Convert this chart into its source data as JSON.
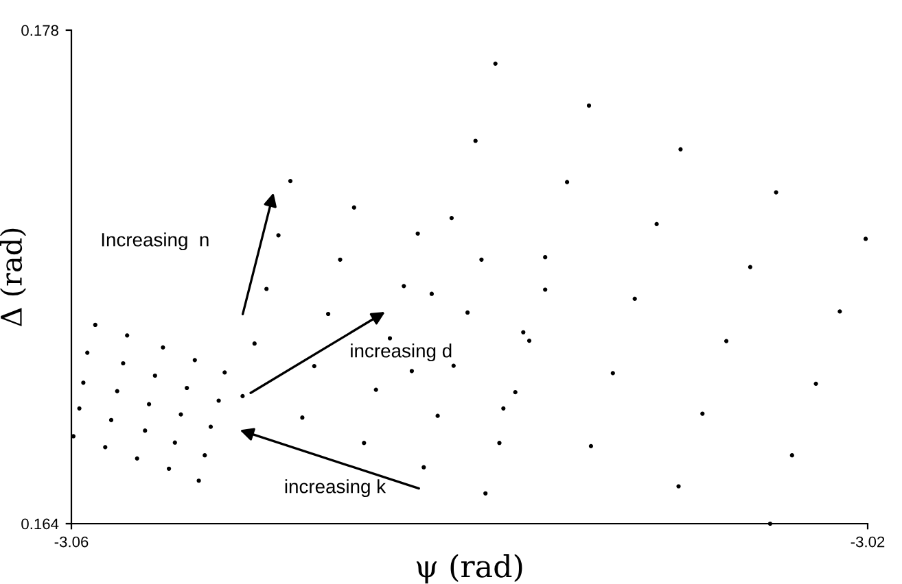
{
  "chart_data": {
    "type": "scatter",
    "xlabel": "ψ (rad)",
    "ylabel": "Δ (rad)",
    "xlim": [
      -3.06,
      -3.02
    ],
    "ylim": [
      0.164,
      0.178
    ],
    "xticks": [
      -3.06,
      -3.02
    ],
    "yticks": [
      0.164,
      0.178
    ],
    "grid": false,
    "legend": false,
    "marker": "circle",
    "annotations": [
      "Increasing  n",
      "increasing d",
      "increasing k"
    ],
    "series": [
      {
        "color": "#000000",
        "x": [
          -3.0588,
          -3.0572,
          -3.0592,
          -3.0554,
          -3.0574,
          -3.0538,
          -3.0594,
          -3.0558,
          -3.0523,
          -3.0577,
          -3.0542,
          -3.0596,
          -3.0561,
          -3.0526,
          -3.0514,
          -3.058,
          -3.0545,
          -3.0599,
          -3.0563,
          -3.053,
          -3.0583,
          -3.0548,
          -3.0567,
          -3.0533,
          -3.0551,
          -3.0536,
          -3.0502,
          -3.0508,
          -3.0478,
          -3.0484,
          -3.0387,
          -3.0397,
          -3.049,
          -3.0458,
          -3.0496,
          -3.0409,
          -3.0426,
          -3.0465,
          -3.0394,
          -3.0362,
          -3.0433,
          -3.0419,
          -3.0362,
          -3.0471,
          -3.0401,
          -3.044,
          -3.0373,
          -3.037,
          -3.0429,
          -3.0408,
          -3.0447,
          -3.0377,
          -3.0383,
          -3.0416,
          -3.0453,
          -3.0385,
          -3.0423,
          -3.0392,
          -3.034,
          -3.0294,
          -3.0351,
          -3.0246,
          -3.0306,
          -3.0201,
          -3.0259,
          -3.0317,
          -3.0214,
          -3.0271,
          -3.0328,
          -3.0226,
          -3.0283,
          -3.0339,
          -3.0238,
          -3.0295,
          -3.0249
        ],
        "values": [
          0.16964,
          0.16934,
          0.16885,
          0.169,
          0.16855,
          0.16864,
          0.168,
          0.1682,
          0.16829,
          0.16776,
          0.16785,
          0.16727,
          0.16739,
          0.16749,
          0.16762,
          0.16694,
          0.1671,
          0.16648,
          0.16664,
          0.16675,
          0.16617,
          0.1663,
          0.16585,
          0.16594,
          0.16556,
          0.16522,
          0.17066,
          0.16911,
          0.16847,
          0.16701,
          0.17705,
          0.17486,
          0.17372,
          0.17297,
          0.17218,
          0.17267,
          0.17223,
          0.17149,
          0.17149,
          0.17156,
          0.17074,
          0.17052,
          0.17064,
          0.16995,
          0.16999,
          0.16926,
          0.16943,
          0.16919,
          0.16833,
          0.16848,
          0.1678,
          0.16773,
          0.16727,
          0.16706,
          0.16629,
          0.16629,
          0.1656,
          0.16486,
          0.17586,
          0.17462,
          0.17369,
          0.1734,
          0.1725,
          0.17208,
          0.17128,
          0.17038,
          0.17002,
          0.16918,
          0.16827,
          0.16797,
          0.16712,
          0.1662,
          0.16594,
          0.16506,
          0.164
        ]
      }
    ]
  }
}
